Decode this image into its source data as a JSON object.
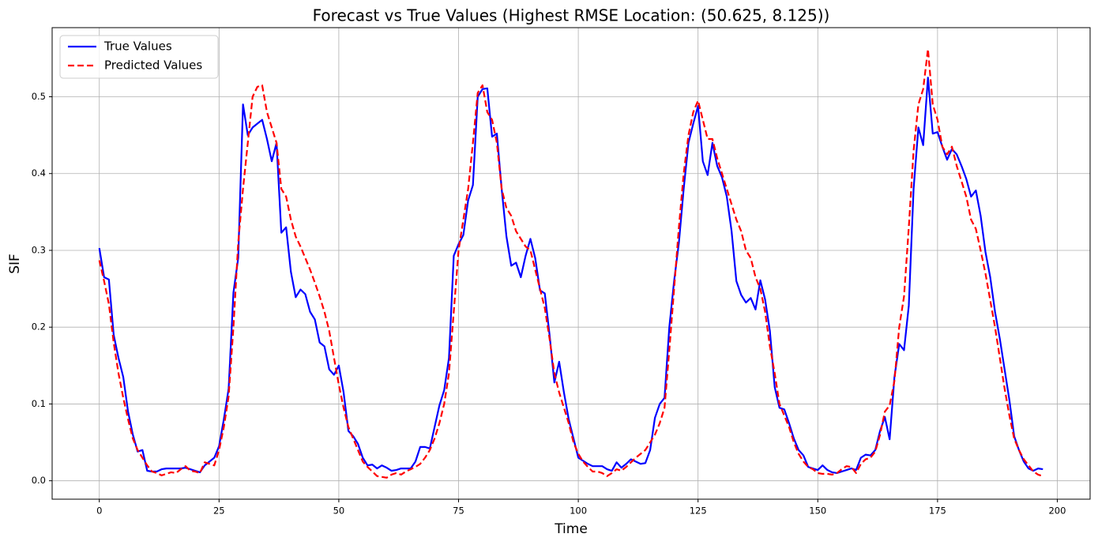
{
  "chart_data": {
    "type": "line",
    "title": "Forecast vs True Values (Highest RMSE Location: (50.625, 8.125))",
    "xlabel": "Time",
    "ylabel": "SIF",
    "grid": true,
    "legend": "upper left",
    "xlim": [
      -9.85,
      206.85
    ],
    "ylim": [
      -0.024,
      0.59
    ],
    "xticks": [
      0,
      25,
      50,
      75,
      100,
      125,
      150,
      175,
      200
    ],
    "yticks": [
      {
        "value": 0,
        "label": "0.0"
      },
      0.1,
      0.2,
      0.3,
      0.4,
      0.5
    ],
    "x": [
      0,
      1,
      2,
      3,
      4,
      5,
      6,
      7,
      8,
      9,
      10,
      11,
      12,
      13,
      14,
      15,
      16,
      17,
      18,
      19,
      20,
      21,
      22,
      23,
      24,
      25,
      26,
      27,
      28,
      29,
      30,
      31,
      32,
      33,
      34,
      35,
      36,
      37,
      38,
      39,
      40,
      41,
      42,
      43,
      44,
      45,
      46,
      47,
      48,
      49,
      50,
      51,
      52,
      53,
      54,
      55,
      56,
      57,
      58,
      59,
      60,
      61,
      62,
      63,
      64,
      65,
      66,
      67,
      68,
      69,
      70,
      71,
      72,
      73,
      74,
      75,
      76,
      77,
      78,
      79,
      80,
      81,
      82,
      83,
      84,
      85,
      86,
      87,
      88,
      89,
      90,
      91,
      92,
      93,
      94,
      95,
      96,
      97,
      98,
      99,
      100,
      101,
      102,
      103,
      104,
      105,
      106,
      107,
      108,
      109,
      110,
      111,
      112,
      113,
      114,
      115,
      116,
      117,
      118,
      119,
      120,
      121,
      122,
      123,
      124,
      125,
      126,
      127,
      128,
      129,
      130,
      131,
      132,
      133,
      134,
      135,
      136,
      137,
      138,
      139,
      140,
      141,
      142,
      143,
      144,
      145,
      146,
      147,
      148,
      149,
      150,
      151,
      152,
      153,
      154,
      155,
      156,
      157,
      158,
      159,
      160,
      161,
      162,
      163,
      164,
      165,
      166,
      167,
      168,
      169,
      170,
      171,
      172,
      173,
      174,
      175,
      176,
      177,
      178,
      179,
      180,
      181,
      182,
      183,
      184,
      185,
      186,
      187,
      188,
      189,
      190,
      191,
      192,
      193,
      194,
      195,
      196,
      197
    ],
    "series": [
      {
        "name": "True Values",
        "color": "#0000ff",
        "dash": false,
        "values": [
          0.303,
          0.265,
          0.262,
          0.19,
          0.16,
          0.135,
          0.09,
          0.06,
          0.038,
          0.04,
          0.013,
          0.012,
          0.012,
          0.015,
          0.016,
          0.016,
          0.016,
          0.016,
          0.017,
          0.015,
          0.013,
          0.011,
          0.02,
          0.025,
          0.03,
          0.045,
          0.08,
          0.12,
          0.245,
          0.29,
          0.49,
          0.45,
          0.46,
          0.465,
          0.47,
          0.445,
          0.416,
          0.44,
          0.323,
          0.33,
          0.272,
          0.239,
          0.249,
          0.243,
          0.22,
          0.21,
          0.18,
          0.175,
          0.145,
          0.138,
          0.15,
          0.115,
          0.065,
          0.058,
          0.048,
          0.03,
          0.02,
          0.021,
          0.016,
          0.02,
          0.017,
          0.013,
          0.014,
          0.016,
          0.016,
          0.016,
          0.025,
          0.044,
          0.044,
          0.042,
          0.07,
          0.098,
          0.118,
          0.16,
          0.293,
          0.308,
          0.32,
          0.365,
          0.385,
          0.5,
          0.51,
          0.511,
          0.448,
          0.452,
          0.38,
          0.318,
          0.28,
          0.284,
          0.265,
          0.293,
          0.315,
          0.29,
          0.248,
          0.244,
          0.19,
          0.128,
          0.155,
          0.115,
          0.08,
          0.055,
          0.03,
          0.026,
          0.022,
          0.019,
          0.019,
          0.019,
          0.015,
          0.013,
          0.024,
          0.017,
          0.022,
          0.028,
          0.025,
          0.022,
          0.023,
          0.04,
          0.082,
          0.1,
          0.108,
          0.2,
          0.26,
          0.31,
          0.38,
          0.44,
          0.465,
          0.488,
          0.416,
          0.398,
          0.44,
          0.41,
          0.395,
          0.37,
          0.325,
          0.26,
          0.242,
          0.232,
          0.238,
          0.223,
          0.261,
          0.236,
          0.195,
          0.122,
          0.095,
          0.093,
          0.075,
          0.055,
          0.04,
          0.033,
          0.018,
          0.016,
          0.014,
          0.02,
          0.014,
          0.011,
          0.01,
          0.012,
          0.014,
          0.016,
          0.014,
          0.03,
          0.034,
          0.033,
          0.04,
          0.065,
          0.083,
          0.054,
          0.135,
          0.178,
          0.17,
          0.228,
          0.38,
          0.46,
          0.437,
          0.525,
          0.452,
          0.454,
          0.435,
          0.418,
          0.432,
          0.425,
          0.41,
          0.393,
          0.37,
          0.378,
          0.345,
          0.298,
          0.265,
          0.22,
          0.185,
          0.145,
          0.105,
          0.058,
          0.04,
          0.025,
          0.016,
          0.013,
          0.016,
          0.015
        ]
      },
      {
        "name": "Predicted Values",
        "color": "#ff0000",
        "dash": true,
        "values": [
          0.287,
          0.26,
          0.23,
          0.18,
          0.14,
          0.108,
          0.08,
          0.055,
          0.04,
          0.03,
          0.02,
          0.012,
          0.01,
          0.007,
          0.009,
          0.011,
          0.01,
          0.015,
          0.019,
          0.013,
          0.012,
          0.01,
          0.024,
          0.022,
          0.02,
          0.04,
          0.07,
          0.11,
          0.2,
          0.31,
          0.38,
          0.44,
          0.5,
          0.513,
          0.515,
          0.48,
          0.46,
          0.44,
          0.38,
          0.37,
          0.34,
          0.318,
          0.305,
          0.29,
          0.275,
          0.258,
          0.24,
          0.22,
          0.195,
          0.16,
          0.125,
          0.095,
          0.07,
          0.055,
          0.04,
          0.025,
          0.018,
          0.012,
          0.006,
          0.005,
          0.004,
          0.008,
          0.01,
          0.008,
          0.012,
          0.015,
          0.018,
          0.022,
          0.03,
          0.04,
          0.055,
          0.075,
          0.1,
          0.14,
          0.22,
          0.3,
          0.34,
          0.38,
          0.44,
          0.505,
          0.515,
          0.48,
          0.47,
          0.44,
          0.38,
          0.355,
          0.345,
          0.325,
          0.315,
          0.305,
          0.3,
          0.275,
          0.25,
          0.225,
          0.185,
          0.14,
          0.115,
          0.095,
          0.075,
          0.05,
          0.035,
          0.025,
          0.018,
          0.012,
          0.012,
          0.01,
          0.006,
          0.01,
          0.015,
          0.013,
          0.018,
          0.024,
          0.03,
          0.035,
          0.04,
          0.05,
          0.06,
          0.075,
          0.095,
          0.17,
          0.25,
          0.33,
          0.4,
          0.45,
          0.48,
          0.495,
          0.47,
          0.445,
          0.445,
          0.42,
          0.4,
          0.38,
          0.36,
          0.34,
          0.325,
          0.3,
          0.29,
          0.265,
          0.25,
          0.22,
          0.175,
          0.14,
          0.1,
          0.085,
          0.07,
          0.05,
          0.035,
          0.025,
          0.018,
          0.015,
          0.01,
          0.009,
          0.009,
          0.008,
          0.01,
          0.015,
          0.019,
          0.018,
          0.01,
          0.022,
          0.028,
          0.03,
          0.038,
          0.06,
          0.09,
          0.098,
          0.13,
          0.2,
          0.24,
          0.33,
          0.43,
          0.49,
          0.51,
          0.562,
          0.49,
          0.47,
          0.435,
          0.425,
          0.435,
          0.41,
          0.39,
          0.37,
          0.34,
          0.328,
          0.3,
          0.27,
          0.235,
          0.2,
          0.16,
          0.12,
          0.085,
          0.055,
          0.04,
          0.028,
          0.02,
          0.012,
          0.008,
          0.006
        ]
      }
    ]
  }
}
